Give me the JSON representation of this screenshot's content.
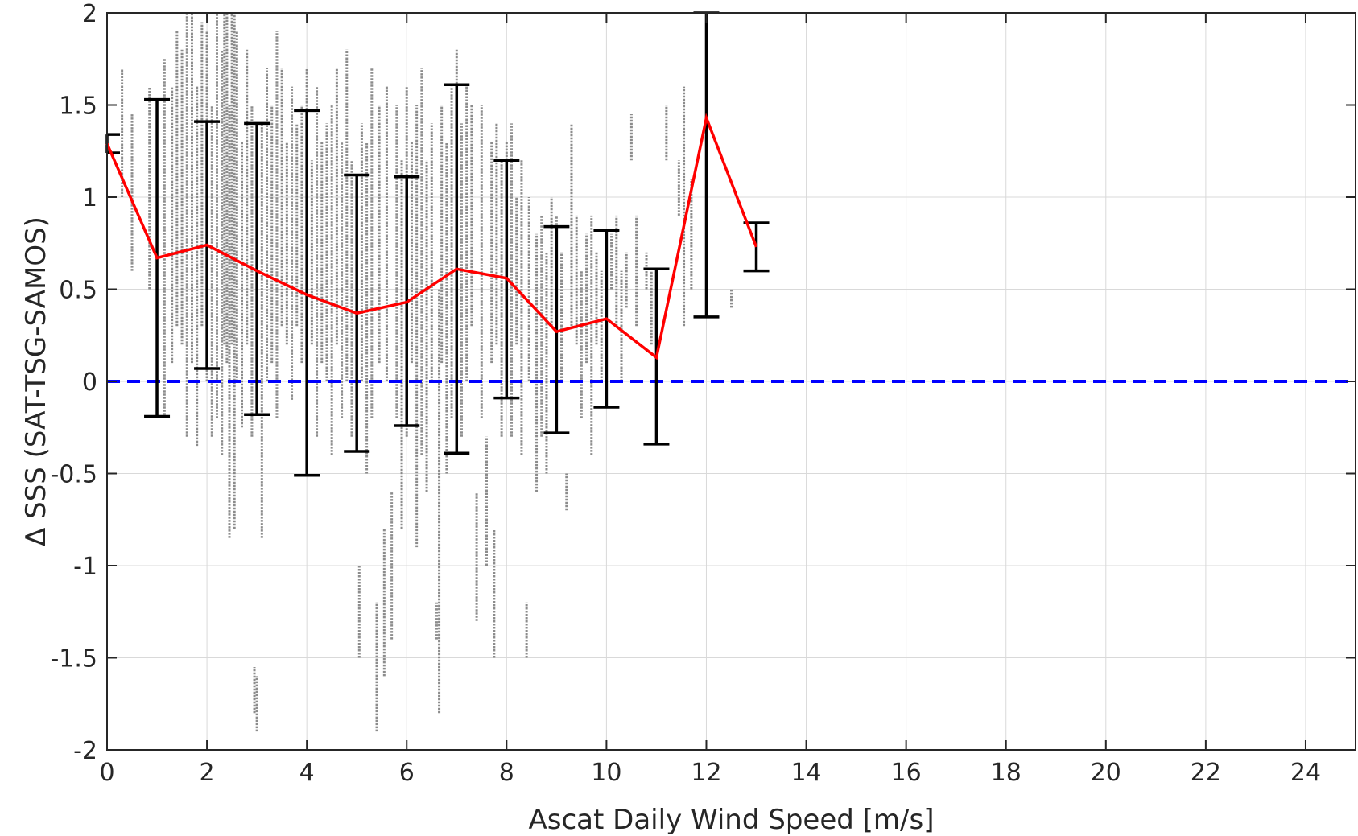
{
  "chart_data": {
    "type": "scatter",
    "xlabel": "Ascat Daily Wind Speed [m/s]",
    "ylabel": "Δ SSS (SAT-TSG-SAMOS)",
    "xlim": [
      0,
      25
    ],
    "ylim": [
      -2,
      2
    ],
    "grid": true,
    "xticks": [
      0,
      2,
      4,
      6,
      8,
      10,
      12,
      14,
      16,
      18,
      20,
      22,
      24
    ],
    "yticks": [
      -2,
      -1.5,
      -1,
      -0.5,
      0,
      0.5,
      1,
      1.5,
      2
    ],
    "xtick_labels": [
      "0",
      "2",
      "4",
      "6",
      "8",
      "10",
      "12",
      "14",
      "16",
      "18",
      "20",
      "22",
      "24"
    ],
    "ytick_labels": [
      "-2",
      "-1.5",
      "-1",
      "-0.5",
      "0",
      "0.5",
      "1",
      "1.5",
      "2"
    ],
    "colors": {
      "scatter": "#808080",
      "mean_line": "#ff0000",
      "error_bars": "#000000",
      "zero_line": "#0000ff",
      "grid": "#d9d9d9",
      "axes": "#262626"
    },
    "reference_line": {
      "y": 0,
      "style": "dashed",
      "color": "#0000ff"
    },
    "bin_means": {
      "x": [
        0,
        1,
        2,
        3,
        4,
        5,
        6,
        7,
        8,
        9,
        10,
        11,
        12,
        13
      ],
      "y": [
        1.29,
        0.67,
        0.74,
        0.6,
        0.47,
        0.37,
        0.43,
        0.61,
        0.56,
        0.27,
        0.34,
        0.13,
        1.43,
        0.73
      ]
    },
    "error_bars": [
      {
        "x": 0,
        "low": 1.24,
        "high": 1.34
      },
      {
        "x": 1,
        "low": -0.19,
        "high": 1.53
      },
      {
        "x": 2,
        "low": 0.07,
        "high": 1.41
      },
      {
        "x": 3,
        "low": -0.18,
        "high": 1.4
      },
      {
        "x": 4,
        "low": -0.51,
        "high": 1.47
      },
      {
        "x": 5,
        "low": -0.38,
        "high": 1.12
      },
      {
        "x": 6,
        "low": -0.24,
        "high": 1.11
      },
      {
        "x": 7,
        "low": -0.39,
        "high": 1.61
      },
      {
        "x": 8,
        "low": -0.09,
        "high": 1.2
      },
      {
        "x": 9,
        "low": -0.28,
        "high": 0.84
      },
      {
        "x": 10,
        "low": -0.14,
        "high": 0.82
      },
      {
        "x": 11,
        "low": -0.34,
        "high": 0.61
      },
      {
        "x": 12,
        "low": 0.35,
        "high": 2.0
      },
      {
        "x": 13,
        "low": 0.6,
        "high": 0.86
      }
    ],
    "scatter_segments": [
      [
        0.3,
        1.0,
        1.7
      ],
      [
        0.5,
        0.6,
        1.45
      ],
      [
        0.85,
        0.5,
        1.6
      ],
      [
        1.15,
        -0.2,
        1.75
      ],
      [
        1.3,
        0.1,
        1.6
      ],
      [
        1.4,
        0.3,
        1.9
      ],
      [
        1.5,
        0.2,
        1.8
      ],
      [
        1.6,
        -0.3,
        2.0
      ],
      [
        1.7,
        0.1,
        2.0
      ],
      [
        1.8,
        -0.35,
        1.6
      ],
      [
        1.9,
        0.3,
        1.95
      ],
      [
        2.0,
        0.0,
        1.9
      ],
      [
        2.1,
        -0.3,
        1.5
      ],
      [
        2.2,
        -0.2,
        2.0
      ],
      [
        2.3,
        -0.4,
        1.8
      ],
      [
        2.35,
        0.2,
        2.0
      ],
      [
        2.4,
        0.1,
        2.0
      ],
      [
        2.45,
        -0.85,
        1.5
      ],
      [
        2.5,
        0.2,
        2.0
      ],
      [
        2.55,
        -0.8,
        2.0
      ],
      [
        2.6,
        0.0,
        1.9
      ],
      [
        2.7,
        -0.25,
        1.3
      ],
      [
        2.8,
        0.2,
        1.8
      ],
      [
        2.9,
        -0.3,
        1.5
      ],
      [
        2.95,
        -1.8,
        -1.55
      ],
      [
        3.0,
        -1.9,
        -1.6
      ],
      [
        3.1,
        -0.85,
        1.4
      ],
      [
        3.2,
        0.0,
        1.7
      ],
      [
        3.3,
        0.1,
        1.5
      ],
      [
        3.4,
        -0.2,
        1.9
      ],
      [
        3.5,
        0.3,
        1.7
      ],
      [
        3.6,
        0.2,
        1.3
      ],
      [
        3.7,
        -0.1,
        1.6
      ],
      [
        3.8,
        0.3,
        1.4
      ],
      [
        3.9,
        0.1,
        1.5
      ],
      [
        4.0,
        -0.5,
        1.7
      ],
      [
        4.1,
        0.2,
        1.2
      ],
      [
        4.2,
        -0.3,
        1.6
      ],
      [
        4.3,
        0.1,
        1.3
      ],
      [
        4.4,
        0.0,
        1.4
      ],
      [
        4.5,
        -0.4,
        1.5
      ],
      [
        4.6,
        0.2,
        1.7
      ],
      [
        4.7,
        -0.2,
        1.3
      ],
      [
        4.8,
        0.0,
        1.8
      ],
      [
        4.9,
        -0.3,
        1.2
      ],
      [
        5.05,
        -1.5,
        -1.0
      ],
      [
        5.1,
        0.0,
        1.4
      ],
      [
        5.2,
        -0.5,
        1.3
      ],
      [
        5.3,
        -0.2,
        1.7
      ],
      [
        5.4,
        -1.9,
        -1.2
      ],
      [
        5.45,
        0.1,
        1.5
      ],
      [
        5.55,
        -1.6,
        -0.8
      ],
      [
        5.6,
        0.0,
        1.6
      ],
      [
        5.7,
        -1.4,
        -0.6
      ],
      [
        5.8,
        -0.2,
        1.5
      ],
      [
        5.9,
        -0.8,
        1.2
      ],
      [
        6.0,
        -0.3,
        1.6
      ],
      [
        6.1,
        0.1,
        1.3
      ],
      [
        6.2,
        -0.9,
        1.5
      ],
      [
        6.3,
        -0.4,
        1.7
      ],
      [
        6.4,
        -0.6,
        1.2
      ],
      [
        6.5,
        0.0,
        1.4
      ],
      [
        6.6,
        -1.4,
        -1.2
      ],
      [
        6.65,
        -1.8,
        0.5
      ],
      [
        6.7,
        0.1,
        1.5
      ],
      [
        6.8,
        -0.5,
        1.3
      ],
      [
        6.9,
        -0.2,
        1.6
      ],
      [
        7.0,
        0.2,
        1.8
      ],
      [
        7.1,
        -0.3,
        1.4
      ],
      [
        7.2,
        0.0,
        1.6
      ],
      [
        7.3,
        0.3,
        1.5
      ],
      [
        7.4,
        -1.3,
        -0.6
      ],
      [
        7.5,
        -0.2,
        1.5
      ],
      [
        7.6,
        -1.0,
        -0.3
      ],
      [
        7.7,
        0.1,
        1.3
      ],
      [
        7.75,
        -1.5,
        -0.8
      ],
      [
        7.8,
        0.2,
        1.4
      ],
      [
        7.9,
        -0.3,
        1.2
      ],
      [
        8.0,
        0.1,
        1.3
      ],
      [
        8.1,
        -0.3,
        1.4
      ],
      [
        8.2,
        0.2,
        1.0
      ],
      [
        8.3,
        -0.4,
        1.2
      ],
      [
        8.4,
        -1.5,
        -1.2
      ],
      [
        8.45,
        0.0,
        1.0
      ],
      [
        8.6,
        -0.6,
        0.8
      ],
      [
        8.7,
        -0.3,
        0.9
      ],
      [
        8.8,
        -0.5,
        0.7
      ],
      [
        8.9,
        0.3,
        1.0
      ],
      [
        9.0,
        -0.2,
        0.9
      ],
      [
        9.1,
        0.0,
        0.7
      ],
      [
        9.2,
        -0.7,
        -0.5
      ],
      [
        9.3,
        0.3,
        1.4
      ],
      [
        9.4,
        0.2,
        0.9
      ],
      [
        9.5,
        -0.2,
        0.6
      ],
      [
        9.6,
        0.1,
        0.8
      ],
      [
        9.7,
        -0.4,
        0.9
      ],
      [
        9.8,
        0.2,
        0.7
      ],
      [
        9.9,
        0.0,
        0.6
      ],
      [
        10.1,
        0.5,
        0.8
      ],
      [
        10.2,
        0.3,
        0.9
      ],
      [
        10.3,
        0.0,
        0.6
      ],
      [
        10.4,
        0.4,
        0.7
      ],
      [
        10.5,
        1.2,
        1.45
      ],
      [
        10.6,
        0.3,
        0.9
      ],
      [
        10.8,
        0.5,
        0.7
      ],
      [
        10.9,
        0.2,
        0.6
      ],
      [
        11.2,
        1.2,
        1.5
      ],
      [
        11.45,
        0.9,
        1.2
      ],
      [
        11.55,
        0.3,
        1.6
      ],
      [
        11.7,
        0.5,
        1.1
      ],
      [
        12.5,
        0.4,
        0.5
      ]
    ]
  }
}
